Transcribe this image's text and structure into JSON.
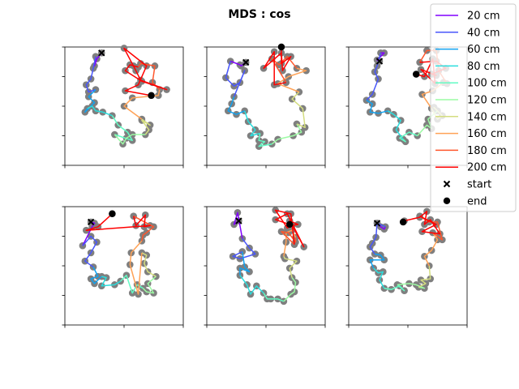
{
  "figure": {
    "title": "MDS : cos"
  },
  "legend": {
    "placement": "upper right",
    "entries": [
      {
        "label": "20 cm",
        "color": "#8000ff",
        "marker": "line"
      },
      {
        "label": "40 cm",
        "color": "#4856fb",
        "marker": "line"
      },
      {
        "label": "60 cm",
        "color": "#10a2f0",
        "marker": "line"
      },
      {
        "label": "80 cm",
        "color": "#2adddd",
        "marker": "line"
      },
      {
        "label": "100 cm",
        "color": "#62fbc4",
        "marker": "line"
      },
      {
        "label": "120 cm",
        "color": "#9cfba4",
        "marker": "line"
      },
      {
        "label": "140 cm",
        "color": "#d4dd80",
        "marker": "line"
      },
      {
        "label": "160 cm",
        "color": "#ffa256",
        "marker": "line"
      },
      {
        "label": "180 cm",
        "color": "#ff562c",
        "marker": "line"
      },
      {
        "label": "200 cm",
        "color": "#ff0000",
        "marker": "line"
      },
      {
        "label": "start",
        "color": "#000000",
        "marker": "x"
      },
      {
        "label": "end",
        "color": "#000000",
        "marker": "dot"
      }
    ]
  },
  "chart_data": {
    "type": "line",
    "title": "MDS : cos",
    "xlim": [
      0,
      1
    ],
    "ylim": [
      0,
      1
    ],
    "tick_labels_visible": false,
    "grid": false,
    "point_color": "#7f7f7f",
    "segment_groups": [
      {
        "label": "20 cm",
        "start_index": 0
      },
      {
        "label": "40 cm",
        "start_index": 3
      },
      {
        "label": "60 cm",
        "start_index": 8
      },
      {
        "label": "80 cm",
        "start_index": 12
      },
      {
        "label": "100 cm",
        "start_index": 16
      },
      {
        "label": "120 cm",
        "start_index": 20
      },
      {
        "label": "140 cm",
        "start_index": 24
      },
      {
        "label": "160 cm",
        "start_index": 28
      },
      {
        "label": "180 cm",
        "start_index": 32
      },
      {
        "label": "200 cm",
        "start_index": 36
      }
    ],
    "panels": [
      {
        "points": [
          [
            0.31,
            0.95
          ],
          [
            0.27,
            0.9
          ],
          [
            0.25,
            0.84
          ],
          [
            0.26,
            0.92
          ],
          [
            0.24,
            0.82
          ],
          [
            0.22,
            0.73
          ],
          [
            0.18,
            0.68
          ],
          [
            0.2,
            0.62
          ],
          [
            0.26,
            0.64
          ],
          [
            0.2,
            0.58
          ],
          [
            0.25,
            0.53
          ],
          [
            0.17,
            0.45
          ],
          [
            0.19,
            0.48
          ],
          [
            0.23,
            0.5
          ],
          [
            0.26,
            0.46
          ],
          [
            0.32,
            0.45
          ],
          [
            0.4,
            0.42
          ],
          [
            0.45,
            0.34
          ],
          [
            0.53,
            0.28
          ],
          [
            0.57,
            0.21
          ],
          [
            0.42,
            0.26
          ],
          [
            0.49,
            0.18
          ],
          [
            0.52,
            0.23
          ],
          [
            0.57,
            0.26
          ],
          [
            0.68,
            0.26
          ],
          [
            0.71,
            0.3
          ],
          [
            0.65,
            0.38
          ],
          [
            0.72,
            0.34
          ],
          [
            0.65,
            0.39
          ],
          [
            0.5,
            0.5
          ],
          [
            0.57,
            0.57
          ],
          [
            0.79,
            0.59
          ],
          [
            0.8,
            0.64
          ],
          [
            0.74,
            0.7
          ],
          [
            0.76,
            0.84
          ],
          [
            0.64,
            0.86
          ],
          [
            0.62,
            0.83
          ],
          [
            0.55,
            0.85
          ],
          [
            0.51,
            0.8
          ],
          [
            0.65,
            0.71
          ],
          [
            0.86,
            0.64
          ],
          [
            0.64,
            0.72
          ],
          [
            0.58,
            0.84
          ],
          [
            0.6,
            0.8
          ],
          [
            0.5,
            0.99
          ],
          [
            0.69,
            0.84
          ],
          [
            0.62,
            0.68
          ],
          [
            0.51,
            0.63
          ],
          [
            0.73,
            0.59
          ]
        ]
      },
      {
        "points": [
          [
            0.33,
            0.87
          ],
          [
            0.29,
            0.84
          ],
          [
            0.28,
            0.85
          ],
          [
            0.2,
            0.88
          ],
          [
            0.16,
            0.74
          ],
          [
            0.23,
            0.67
          ],
          [
            0.28,
            0.7
          ],
          [
            0.32,
            0.8
          ],
          [
            0.23,
            0.58
          ],
          [
            0.21,
            0.52
          ],
          [
            0.18,
            0.46
          ],
          [
            0.25,
            0.43
          ],
          [
            0.32,
            0.46
          ],
          [
            0.35,
            0.37
          ],
          [
            0.41,
            0.3
          ],
          [
            0.37,
            0.25
          ],
          [
            0.45,
            0.27
          ],
          [
            0.44,
            0.21
          ],
          [
            0.49,
            0.2
          ],
          [
            0.44,
            0.16
          ],
          [
            0.55,
            0.18
          ],
          [
            0.6,
            0.22
          ],
          [
            0.73,
            0.25
          ],
          [
            0.8,
            0.28
          ],
          [
            0.76,
            0.35
          ],
          [
            0.83,
            0.32
          ],
          [
            0.81,
            0.48
          ],
          [
            0.72,
            0.56
          ],
          [
            0.78,
            0.62
          ],
          [
            0.6,
            0.69
          ],
          [
            0.69,
            0.75
          ],
          [
            0.84,
            0.8
          ],
          [
            0.76,
            0.82
          ],
          [
            0.68,
            0.92
          ],
          [
            0.61,
            0.85
          ],
          [
            0.55,
            0.9
          ],
          [
            0.67,
            0.7
          ],
          [
            0.57,
            0.68
          ],
          [
            0.57,
            0.96
          ],
          [
            0.48,
            0.82
          ],
          [
            0.63,
            0.95
          ],
          [
            0.64,
            0.8
          ],
          [
            0.71,
            0.92
          ],
          [
            0.63,
            0.86
          ],
          [
            0.63,
            1.0
          ]
        ]
      },
      {
        "points": [
          [
            0.26,
            0.88
          ],
          [
            0.24,
            0.89
          ],
          [
            0.3,
            0.95
          ],
          [
            0.27,
            0.95
          ],
          [
            0.24,
            0.84
          ],
          [
            0.22,
            0.79
          ],
          [
            0.25,
            0.73
          ],
          [
            0.2,
            0.6
          ],
          [
            0.15,
            0.55
          ],
          [
            0.2,
            0.52
          ],
          [
            0.18,
            0.45
          ],
          [
            0.25,
            0.44
          ],
          [
            0.33,
            0.46
          ],
          [
            0.38,
            0.43
          ],
          [
            0.44,
            0.38
          ],
          [
            0.4,
            0.3
          ],
          [
            0.46,
            0.22
          ],
          [
            0.48,
            0.2
          ],
          [
            0.43,
            0.23
          ],
          [
            0.51,
            0.28
          ],
          [
            0.58,
            0.25
          ],
          [
            0.66,
            0.34
          ],
          [
            0.7,
            0.31
          ],
          [
            0.67,
            0.39
          ],
          [
            0.75,
            0.46
          ],
          [
            0.72,
            0.49
          ],
          [
            0.79,
            0.42
          ],
          [
            0.75,
            0.39
          ],
          [
            0.7,
            0.48
          ],
          [
            0.62,
            0.6
          ],
          [
            0.71,
            0.63
          ],
          [
            0.8,
            0.7
          ],
          [
            0.83,
            0.69
          ],
          [
            0.76,
            0.8
          ],
          [
            0.74,
            0.97
          ],
          [
            0.66,
            0.97
          ],
          [
            0.6,
            0.87
          ],
          [
            0.74,
            0.88
          ],
          [
            0.82,
            0.82
          ],
          [
            0.7,
            0.77
          ],
          [
            0.74,
            0.76
          ],
          [
            0.61,
            0.81
          ],
          [
            0.73,
            0.69
          ],
          [
            0.71,
            0.9
          ],
          [
            0.64,
            0.75
          ],
          [
            0.57,
            0.77
          ]
        ]
      },
      {
        "points": [
          [
            0.22,
            0.87
          ],
          [
            0.25,
            0.86
          ],
          [
            0.23,
            0.83
          ],
          [
            0.15,
            0.67
          ],
          [
            0.22,
            0.75
          ],
          [
            0.27,
            0.7
          ],
          [
            0.22,
            0.61
          ],
          [
            0.17,
            0.54
          ],
          [
            0.24,
            0.49
          ],
          [
            0.28,
            0.41
          ],
          [
            0.22,
            0.39
          ],
          [
            0.25,
            0.35
          ],
          [
            0.31,
            0.41
          ],
          [
            0.35,
            0.4
          ],
          [
            0.31,
            0.33
          ],
          [
            0.42,
            0.34
          ],
          [
            0.47,
            0.37
          ],
          [
            0.52,
            0.42
          ],
          [
            0.57,
            0.27
          ],
          [
            0.61,
            0.34
          ],
          [
            0.66,
            0.31
          ],
          [
            0.69,
            0.28
          ],
          [
            0.75,
            0.27
          ],
          [
            0.7,
            0.35
          ],
          [
            0.77,
            0.41
          ],
          [
            0.7,
            0.45
          ],
          [
            0.67,
            0.52
          ],
          [
            0.69,
            0.59
          ],
          [
            0.65,
            0.61
          ],
          [
            0.62,
            0.26
          ],
          [
            0.55,
            0.51
          ],
          [
            0.56,
            0.61
          ],
          [
            0.65,
            0.71
          ],
          [
            0.66,
            0.76
          ],
          [
            0.69,
            0.78
          ],
          [
            0.75,
            0.83
          ],
          [
            0.58,
            0.92
          ],
          [
            0.6,
            0.84
          ],
          [
            0.68,
            0.93
          ],
          [
            0.67,
            0.83
          ],
          [
            0.72,
            0.84
          ],
          [
            0.18,
            0.8
          ],
          [
            0.28,
            0.83
          ],
          [
            0.4,
            0.94
          ]
        ]
      },
      {
        "points": [
          [
            0.27,
            0.88
          ],
          [
            0.23,
            0.85
          ],
          [
            0.26,
            0.95
          ],
          [
            0.3,
            0.73
          ],
          [
            0.36,
            0.65
          ],
          [
            0.41,
            0.6
          ],
          [
            0.28,
            0.56
          ],
          [
            0.22,
            0.58
          ],
          [
            0.3,
            0.62
          ],
          [
            0.32,
            0.49
          ],
          [
            0.36,
            0.45
          ],
          [
            0.28,
            0.48
          ],
          [
            0.28,
            0.42
          ],
          [
            0.34,
            0.34
          ],
          [
            0.37,
            0.26
          ],
          [
            0.42,
            0.33
          ],
          [
            0.48,
            0.27
          ],
          [
            0.51,
            0.22
          ],
          [
            0.54,
            0.22
          ],
          [
            0.6,
            0.22
          ],
          [
            0.65,
            0.2
          ],
          [
            0.71,
            0.26
          ],
          [
            0.74,
            0.28
          ],
          [
            0.75,
            0.36
          ],
          [
            0.72,
            0.4
          ],
          [
            0.7,
            0.48
          ],
          [
            0.76,
            0.54
          ],
          [
            0.66,
            0.56
          ],
          [
            0.65,
            0.58
          ],
          [
            0.67,
            0.7
          ],
          [
            0.67,
            0.78
          ],
          [
            0.72,
            0.8
          ],
          [
            0.75,
            0.74
          ],
          [
            0.75,
            0.7
          ],
          [
            0.69,
            0.78
          ],
          [
            0.63,
            0.79
          ],
          [
            0.74,
            0.68
          ],
          [
            0.71,
            0.94
          ],
          [
            0.58,
            0.97
          ],
          [
            0.68,
            0.82
          ],
          [
            0.72,
            0.84
          ],
          [
            0.77,
            0.85
          ],
          [
            0.7,
            0.88
          ],
          [
            0.82,
            0.66
          ],
          [
            0.68,
            0.94
          ],
          [
            0.58,
            0.89
          ],
          [
            0.7,
            0.85
          ]
        ]
      },
      {
        "points": [
          [
            0.24,
            0.86
          ],
          [
            0.27,
            0.83
          ],
          [
            0.3,
            0.81
          ],
          [
            0.31,
            0.83
          ],
          [
            0.24,
            0.86
          ],
          [
            0.23,
            0.74
          ],
          [
            0.2,
            0.69
          ],
          [
            0.18,
            0.66
          ],
          [
            0.22,
            0.6
          ],
          [
            0.27,
            0.59
          ],
          [
            0.3,
            0.55
          ],
          [
            0.18,
            0.55
          ],
          [
            0.21,
            0.48
          ],
          [
            0.25,
            0.44
          ],
          [
            0.29,
            0.45
          ],
          [
            0.26,
            0.38
          ],
          [
            0.3,
            0.31
          ],
          [
            0.36,
            0.3
          ],
          [
            0.43,
            0.33
          ],
          [
            0.47,
            0.29
          ],
          [
            0.41,
            0.34
          ],
          [
            0.51,
            0.35
          ],
          [
            0.57,
            0.34
          ],
          [
            0.64,
            0.31
          ],
          [
            0.59,
            0.32
          ],
          [
            0.65,
            0.35
          ],
          [
            0.61,
            0.38
          ],
          [
            0.69,
            0.39
          ],
          [
            0.68,
            0.5
          ],
          [
            0.64,
            0.58
          ],
          [
            0.7,
            0.63
          ],
          [
            0.75,
            0.72
          ],
          [
            0.71,
            0.78
          ],
          [
            0.79,
            0.72
          ],
          [
            0.75,
            0.87
          ],
          [
            0.68,
            0.87
          ],
          [
            0.6,
            0.92
          ],
          [
            0.74,
            0.85
          ],
          [
            0.62,
            0.79
          ],
          [
            0.77,
            0.77
          ],
          [
            0.69,
            0.89
          ],
          [
            0.64,
            0.85
          ],
          [
            0.66,
            0.96
          ],
          [
            0.6,
            0.91
          ],
          [
            0.47,
            0.88
          ],
          [
            0.46,
            0.87
          ]
        ]
      }
    ]
  }
}
